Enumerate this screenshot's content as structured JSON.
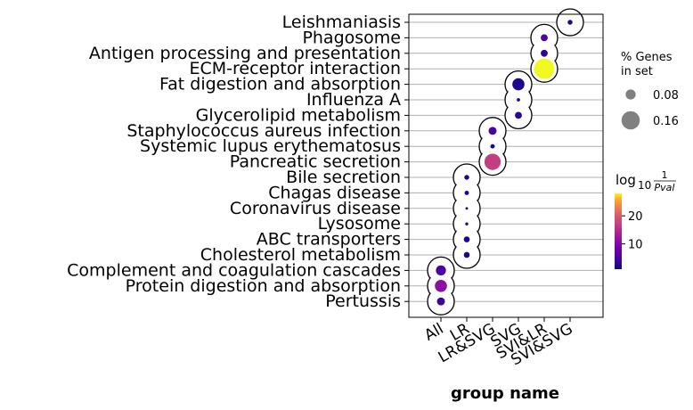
{
  "chart_data": {
    "type": "scatter",
    "subtype": "dot-plot",
    "xlabel": "group name",
    "x_categories": [
      "All",
      "LR",
      "LR&SVG",
      "SVG",
      "SVI&LR",
      "SVI&SVG"
    ],
    "y_categories": [
      "Leishmaniasis",
      "Phagosome",
      "Antigen processing and presentation",
      "ECM-receptor interaction",
      "Fat digestion and absorption",
      "Influenza A",
      "Glycerolipid metabolism",
      "Staphylococcus aureus infection",
      "Systemic lupus erythematosus",
      "Pancreatic secretion",
      "Bile secretion",
      "Chagas disease",
      "Coronavirus disease",
      "Lysosome",
      "ABC transporters",
      "Cholesterol metabolism",
      "Complement and coagulation cascades",
      "Protein digestion and absorption",
      "Pertussis"
    ],
    "points": [
      {
        "term": "Leishmaniasis",
        "x_pos": 5,
        "genes_pct": 0.03,
        "log10_inv_pval": 2
      },
      {
        "term": "Phagosome",
        "x_pos": 4,
        "genes_pct": 0.05,
        "log10_inv_pval": 5
      },
      {
        "term": "Antigen processing and presentation",
        "x_pos": 4,
        "genes_pct": 0.05,
        "log10_inv_pval": 3
      },
      {
        "term": "ECM-receptor interaction",
        "x_pos": 4,
        "genes_pct": 0.18,
        "log10_inv_pval": 28
      },
      {
        "term": "Fat digestion and absorption",
        "x_pos": 3,
        "genes_pct": 0.1,
        "log10_inv_pval": 2
      },
      {
        "term": "Influenza A",
        "x_pos": 3,
        "genes_pct": 0.015,
        "log10_inv_pval": 2
      },
      {
        "term": "Glycerolipid metabolism",
        "x_pos": 3,
        "genes_pct": 0.05,
        "log10_inv_pval": 3
      },
      {
        "term": "Staphylococcus aureus infection",
        "x_pos": 2,
        "genes_pct": 0.06,
        "log10_inv_pval": 5
      },
      {
        "term": "Systemic lupus erythematosus",
        "x_pos": 2,
        "genes_pct": 0.025,
        "log10_inv_pval": 2
      },
      {
        "term": "Pancreatic secretion",
        "x_pos": 2,
        "genes_pct": 0.14,
        "log10_inv_pval": 17
      },
      {
        "term": "Bile secretion",
        "x_pos": 1,
        "genes_pct": 0.03,
        "log10_inv_pval": 2
      },
      {
        "term": "Chagas disease",
        "x_pos": 1,
        "genes_pct": 0.025,
        "log10_inv_pval": 2
      },
      {
        "term": "Coronavirus disease",
        "x_pos": 1,
        "genes_pct": 0.008,
        "log10_inv_pval": 2
      },
      {
        "term": "Lysosome",
        "x_pos": 1,
        "genes_pct": 0.012,
        "log10_inv_pval": 2
      },
      {
        "term": "ABC transporters",
        "x_pos": 1,
        "genes_pct": 0.04,
        "log10_inv_pval": 2
      },
      {
        "term": "Cholesterol metabolism",
        "x_pos": 1,
        "genes_pct": 0.04,
        "log10_inv_pval": 2
      },
      {
        "term": "Complement and coagulation cascades",
        "x_pos": 0,
        "genes_pct": 0.08,
        "log10_inv_pval": 5
      },
      {
        "term": "Protein digestion and absorption",
        "x_pos": 0,
        "genes_pct": 0.1,
        "log10_inv_pval": 11
      },
      {
        "term": "Pertussis",
        "x_pos": 0,
        "genes_pct": 0.06,
        "log10_inv_pval": 4
      }
    ],
    "size_legend": {
      "title_lines": [
        "% Genes",
        "in set"
      ],
      "entries": [
        {
          "label": "0.08",
          "value": 0.08
        },
        {
          "label": "0.16",
          "value": 0.16
        }
      ]
    },
    "colorbar": {
      "title_base": "log",
      "title_sub": "10",
      "title_num": "1",
      "title_den": "Pval",
      "ticks": [
        {
          "label": "10",
          "value": 10
        },
        {
          "label": "20",
          "value": 20
        }
      ],
      "range": [
        1,
        28
      ],
      "colormap": "plasma"
    },
    "grid": "horizontal"
  }
}
